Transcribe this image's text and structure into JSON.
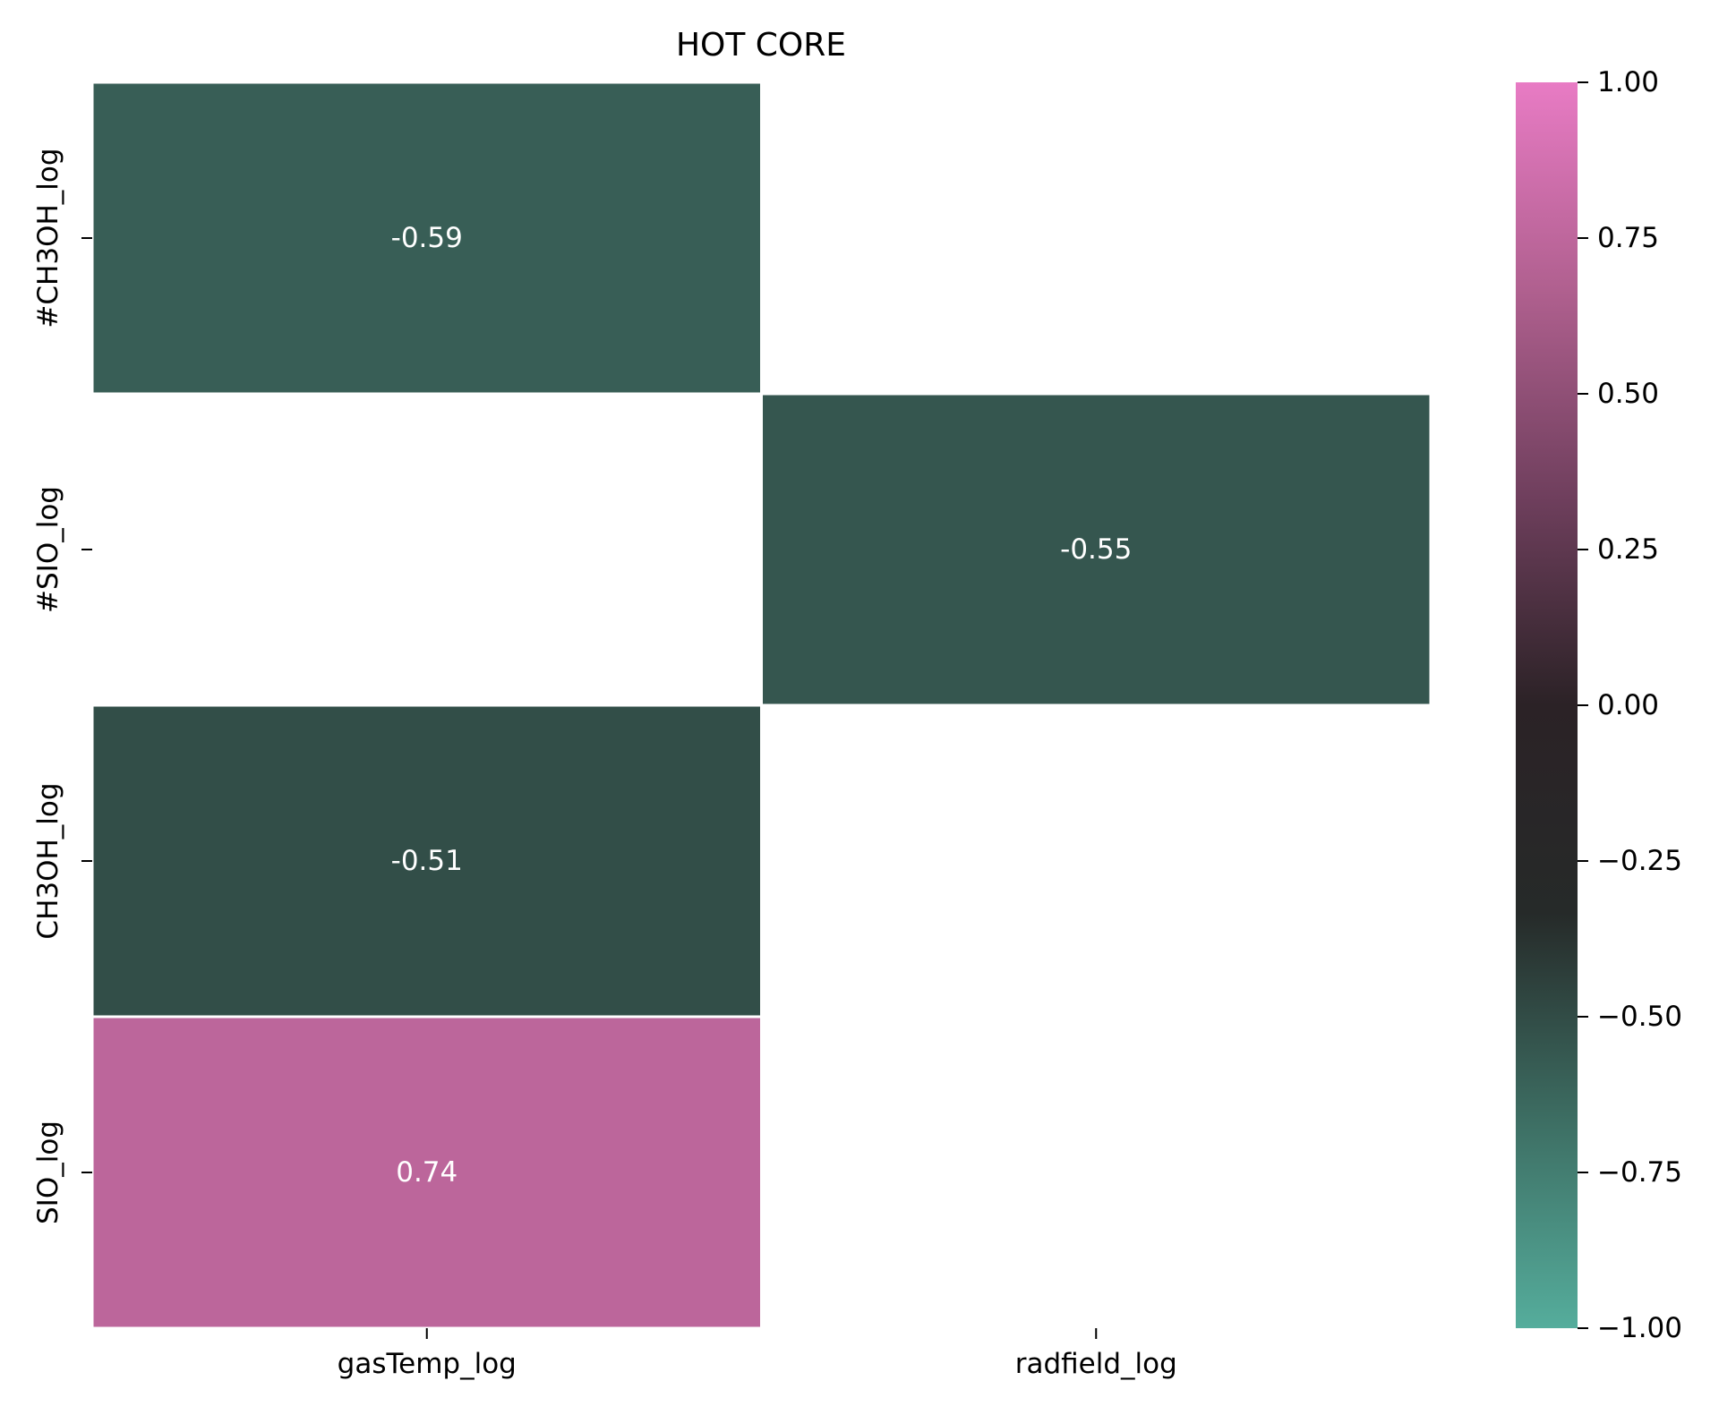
{
  "chart_data": {
    "type": "heatmap",
    "title": "HOT CORE",
    "xlabel": "",
    "ylabel": "",
    "x_categories": [
      "gasTemp_log",
      "radfield_log"
    ],
    "y_categories": [
      "#CH3OH_log",
      "#SIO_log",
      "CH3OH_log",
      "SIO_log"
    ],
    "values": [
      [
        -0.59,
        null
      ],
      [
        null,
        -0.55
      ],
      [
        -0.51,
        null
      ],
      [
        0.74,
        null
      ]
    ],
    "value_labels": [
      [
        "-0.59",
        null
      ],
      [
        null,
        "-0.55"
      ],
      [
        "-0.51",
        null
      ],
      [
        "0.74",
        null
      ]
    ],
    "colorbar": {
      "range": [
        -1.0,
        1.0
      ],
      "ticks": [
        1.0,
        0.75,
        0.5,
        0.25,
        0.0,
        -0.25,
        -0.5,
        -0.75,
        -1.0
      ],
      "tick_labels": [
        "1.00",
        "0.75",
        "0.50",
        "0.25",
        "0.00",
        "−0.25",
        "−0.50",
        "−0.75",
        "−1.00"
      ],
      "colors": [
        "#55ad9c",
        "#3d6e63",
        "#262a29",
        "#2b2226",
        "#6f3f5d",
        "#b0608f",
        "#e87bc4"
      ]
    },
    "cell_border_color": "#ffffff",
    "missing_cell_color": "#ffffff"
  }
}
